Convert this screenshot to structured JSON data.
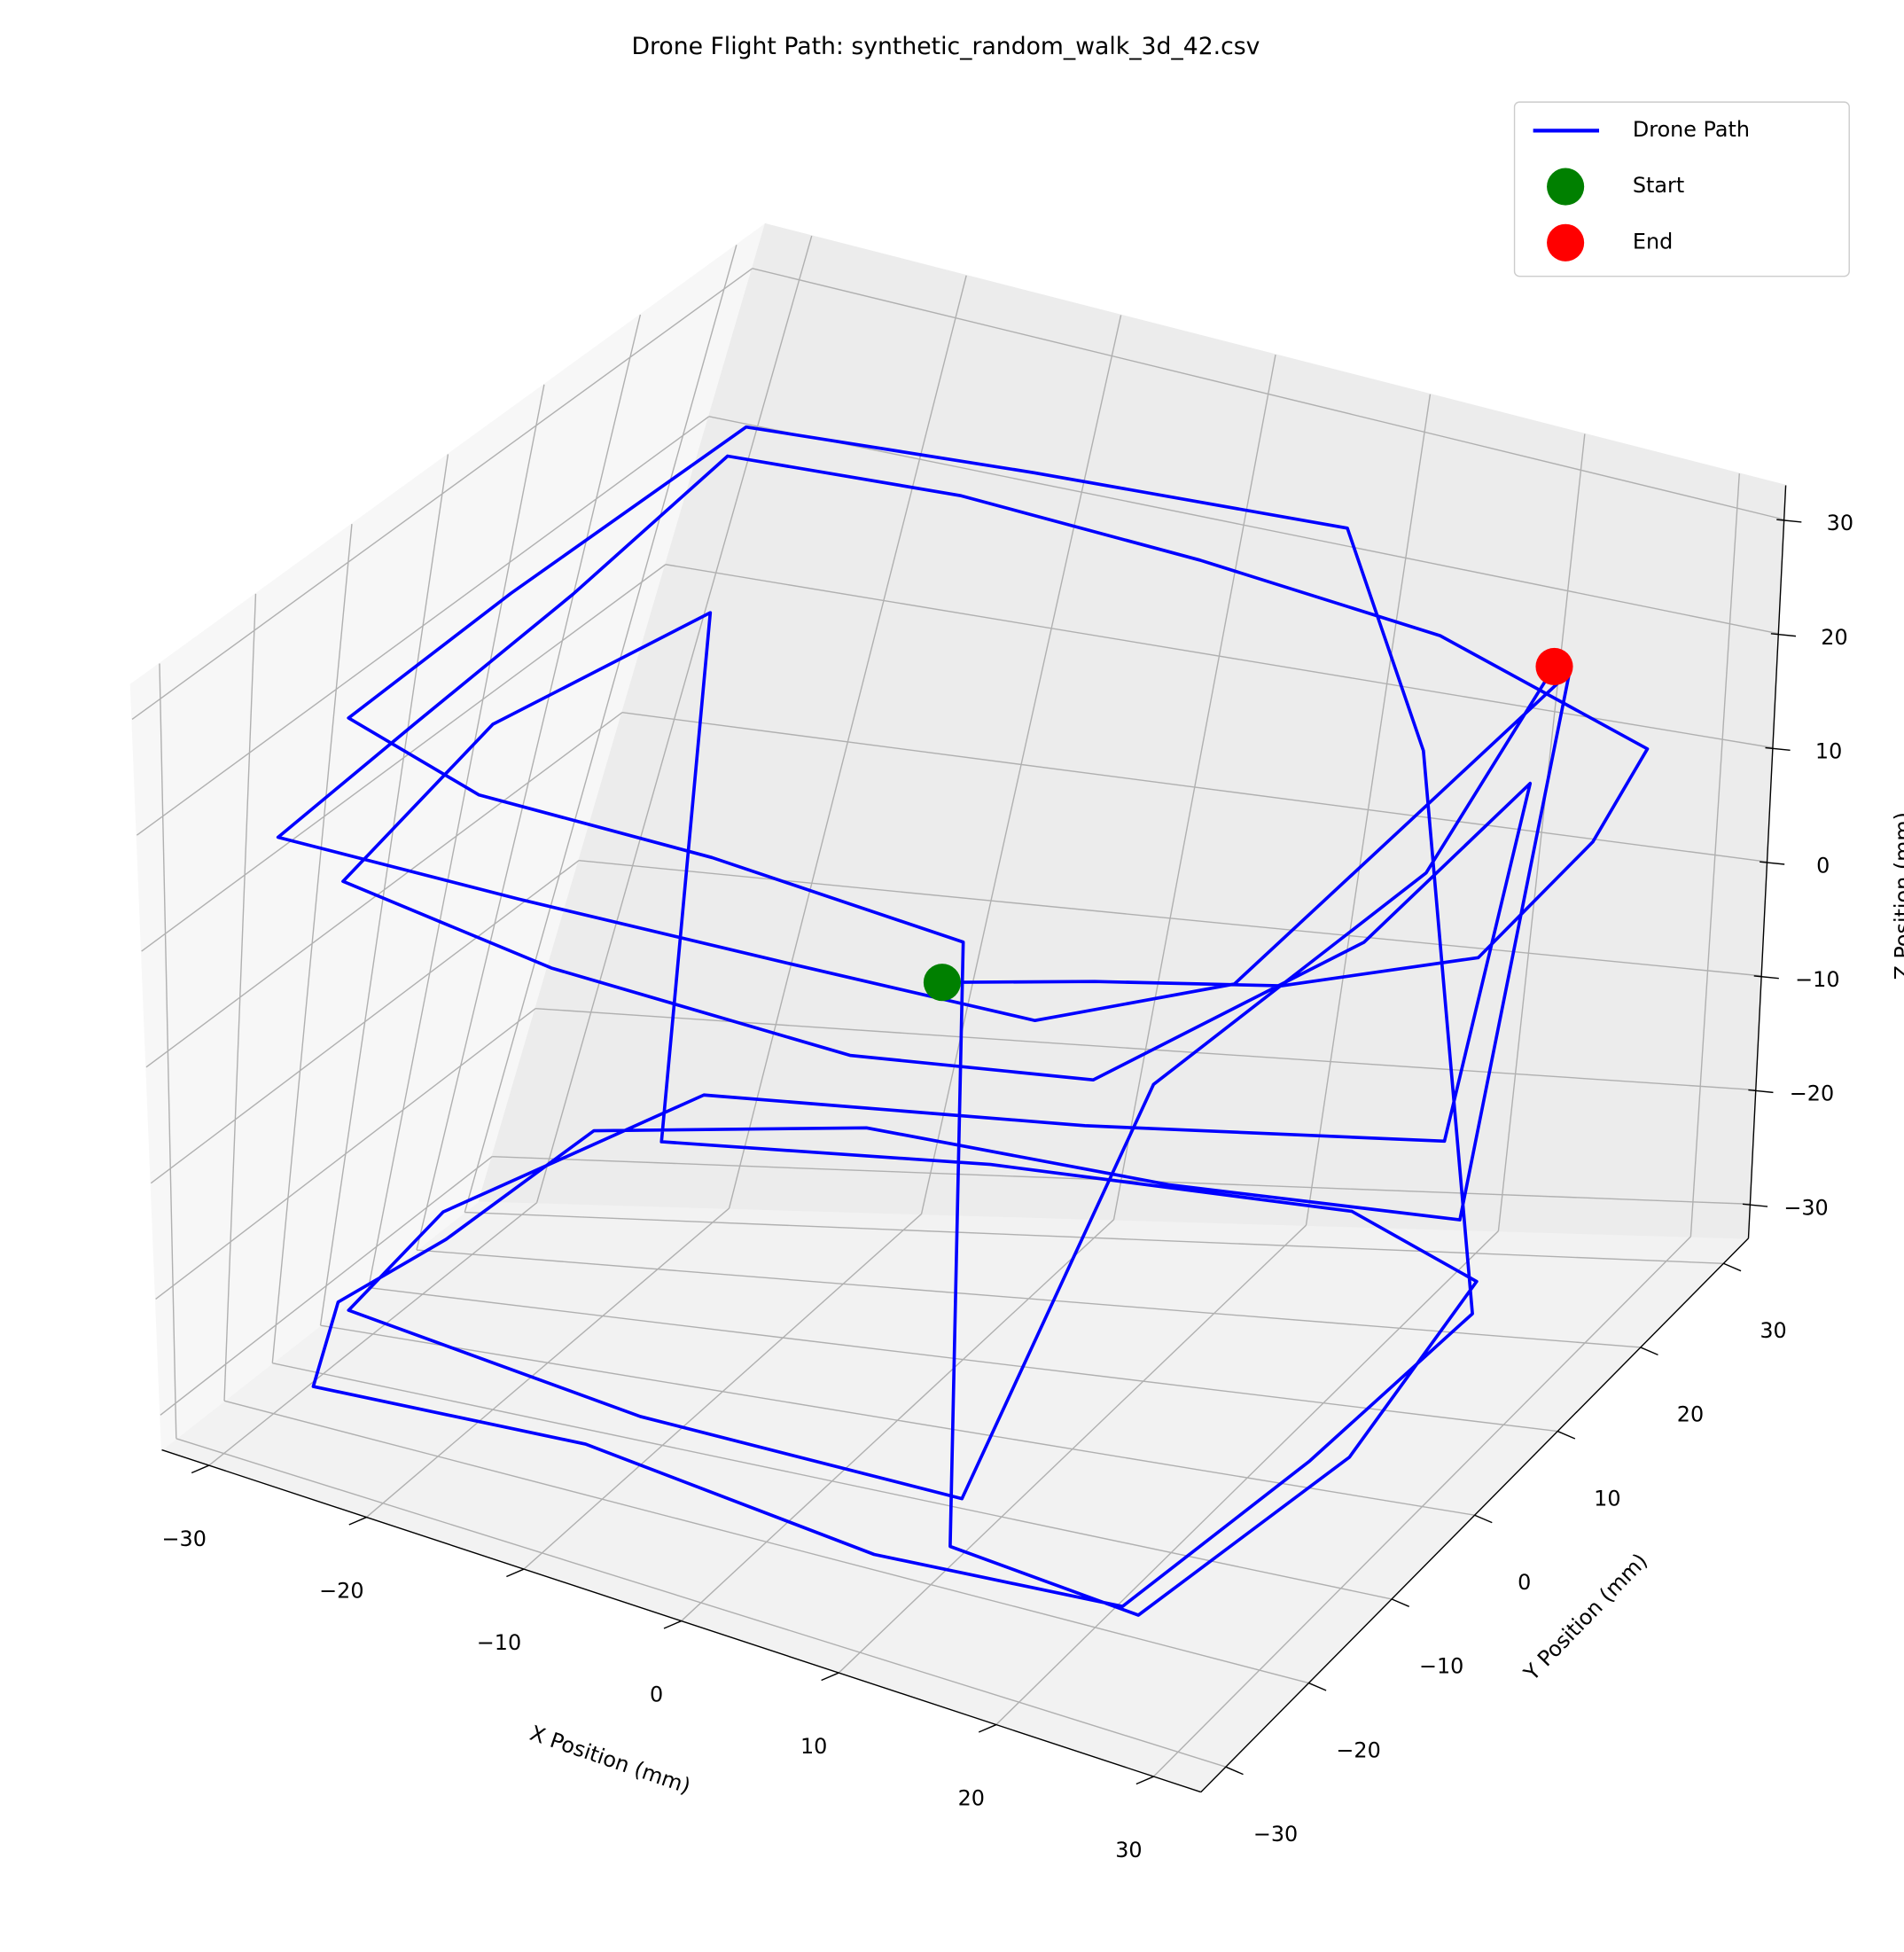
{
  "chart_data": {
    "type": "line3d",
    "title": "Drone Flight Path: synthetic_random_walk_3d_42.csv",
    "xlabel": "X Position (mm)",
    "ylabel": "Y Position (mm)",
    "zlabel": "Z Position (mm)",
    "xlim": [
      -33,
      33
    ],
    "ylim": [
      -33,
      33
    ],
    "zlim": [
      -33,
      33
    ],
    "xticks": [
      {
        "value": -30,
        "label": "−30"
      },
      {
        "value": -20,
        "label": "−20"
      },
      {
        "value": -10,
        "label": "−10"
      },
      0,
      10,
      20,
      30
    ],
    "yticks": [
      {
        "value": -30,
        "label": "−30"
      },
      {
        "value": -20,
        "label": "−20"
      },
      {
        "value": -10,
        "label": "−10"
      },
      0,
      10,
      20,
      30
    ],
    "zticks": [
      {
        "value": -30,
        "label": "−30"
      },
      {
        "value": -20,
        "label": "−20"
      },
      {
        "value": -10,
        "label": "−10"
      },
      0,
      10,
      20,
      30
    ],
    "grid": true,
    "legend": "upper right",
    "series": [
      {
        "name": "Drone Path",
        "color": "#0000ff",
        "mode": "line",
        "x": [
          -3,
          5,
          15,
          25,
          28,
          28,
          15,
          0,
          -15,
          -28,
          -28,
          -28,
          -28,
          -12,
          5,
          20,
          28,
          28,
          28,
          22,
          5,
          -12,
          -26,
          -28,
          -28,
          -25,
          -8,
          10,
          25,
          28,
          28,
          26,
          10,
          -10,
          -26,
          -28,
          -27,
          -15,
          0,
          15,
          12,
          25,
          28,
          26,
          15,
          -5,
          -22,
          -24,
          -28,
          -26,
          -10,
          8,
          22,
          28,
          26,
          20,
          0,
          -20,
          -27,
          -25,
          -5,
          15,
          18,
          24,
          25
        ],
        "y": [
          8,
          10,
          12,
          15,
          22,
          28,
          28,
          28,
          28,
          25,
          8,
          -10,
          -26,
          -28,
          -28,
          -28,
          -20,
          0,
          18,
          22,
          25,
          26,
          24,
          5,
          -15,
          -28,
          -28,
          -28,
          -27,
          -10,
          10,
          5,
          25,
          26,
          22,
          0,
          -20,
          -27,
          -28,
          -27,
          -22,
          -25,
          -5,
          15,
          25,
          26,
          23,
          18,
          0,
          -22,
          -28,
          -27,
          -25,
          -5,
          18,
          24,
          25,
          22,
          0,
          -22,
          -27,
          -27,
          -10,
          10,
          22
        ],
        "z": [
          -3,
          -2,
          -1,
          2,
          8,
          12,
          18,
          20,
          21,
          22,
          20,
          19,
          18,
          20,
          21,
          22,
          23,
          24,
          25,
          -25,
          -26,
          -24,
          -25,
          -27,
          -25,
          -26,
          -24,
          -26,
          -25,
          -23,
          -24,
          26,
          27,
          25,
          26,
          24,
          25,
          27,
          28,
          26,
          -28,
          -27,
          -26,
          -25,
          -27,
          -26,
          -25,
          15,
          14,
          13,
          15,
          14,
          16,
          17,
          15,
          -20,
          -22,
          -21,
          -23,
          -22,
          -21,
          -20,
          5,
          12,
          22
        ]
      },
      {
        "name": "Start",
        "color": "#008000",
        "mode": "marker",
        "x": [
          -3
        ],
        "y": [
          8
        ],
        "z": [
          -3
        ]
      },
      {
        "name": "End",
        "color": "#ff0000",
        "mode": "marker",
        "x": [
          25
        ],
        "y": [
          22
        ],
        "z": [
          22
        ]
      }
    ]
  }
}
